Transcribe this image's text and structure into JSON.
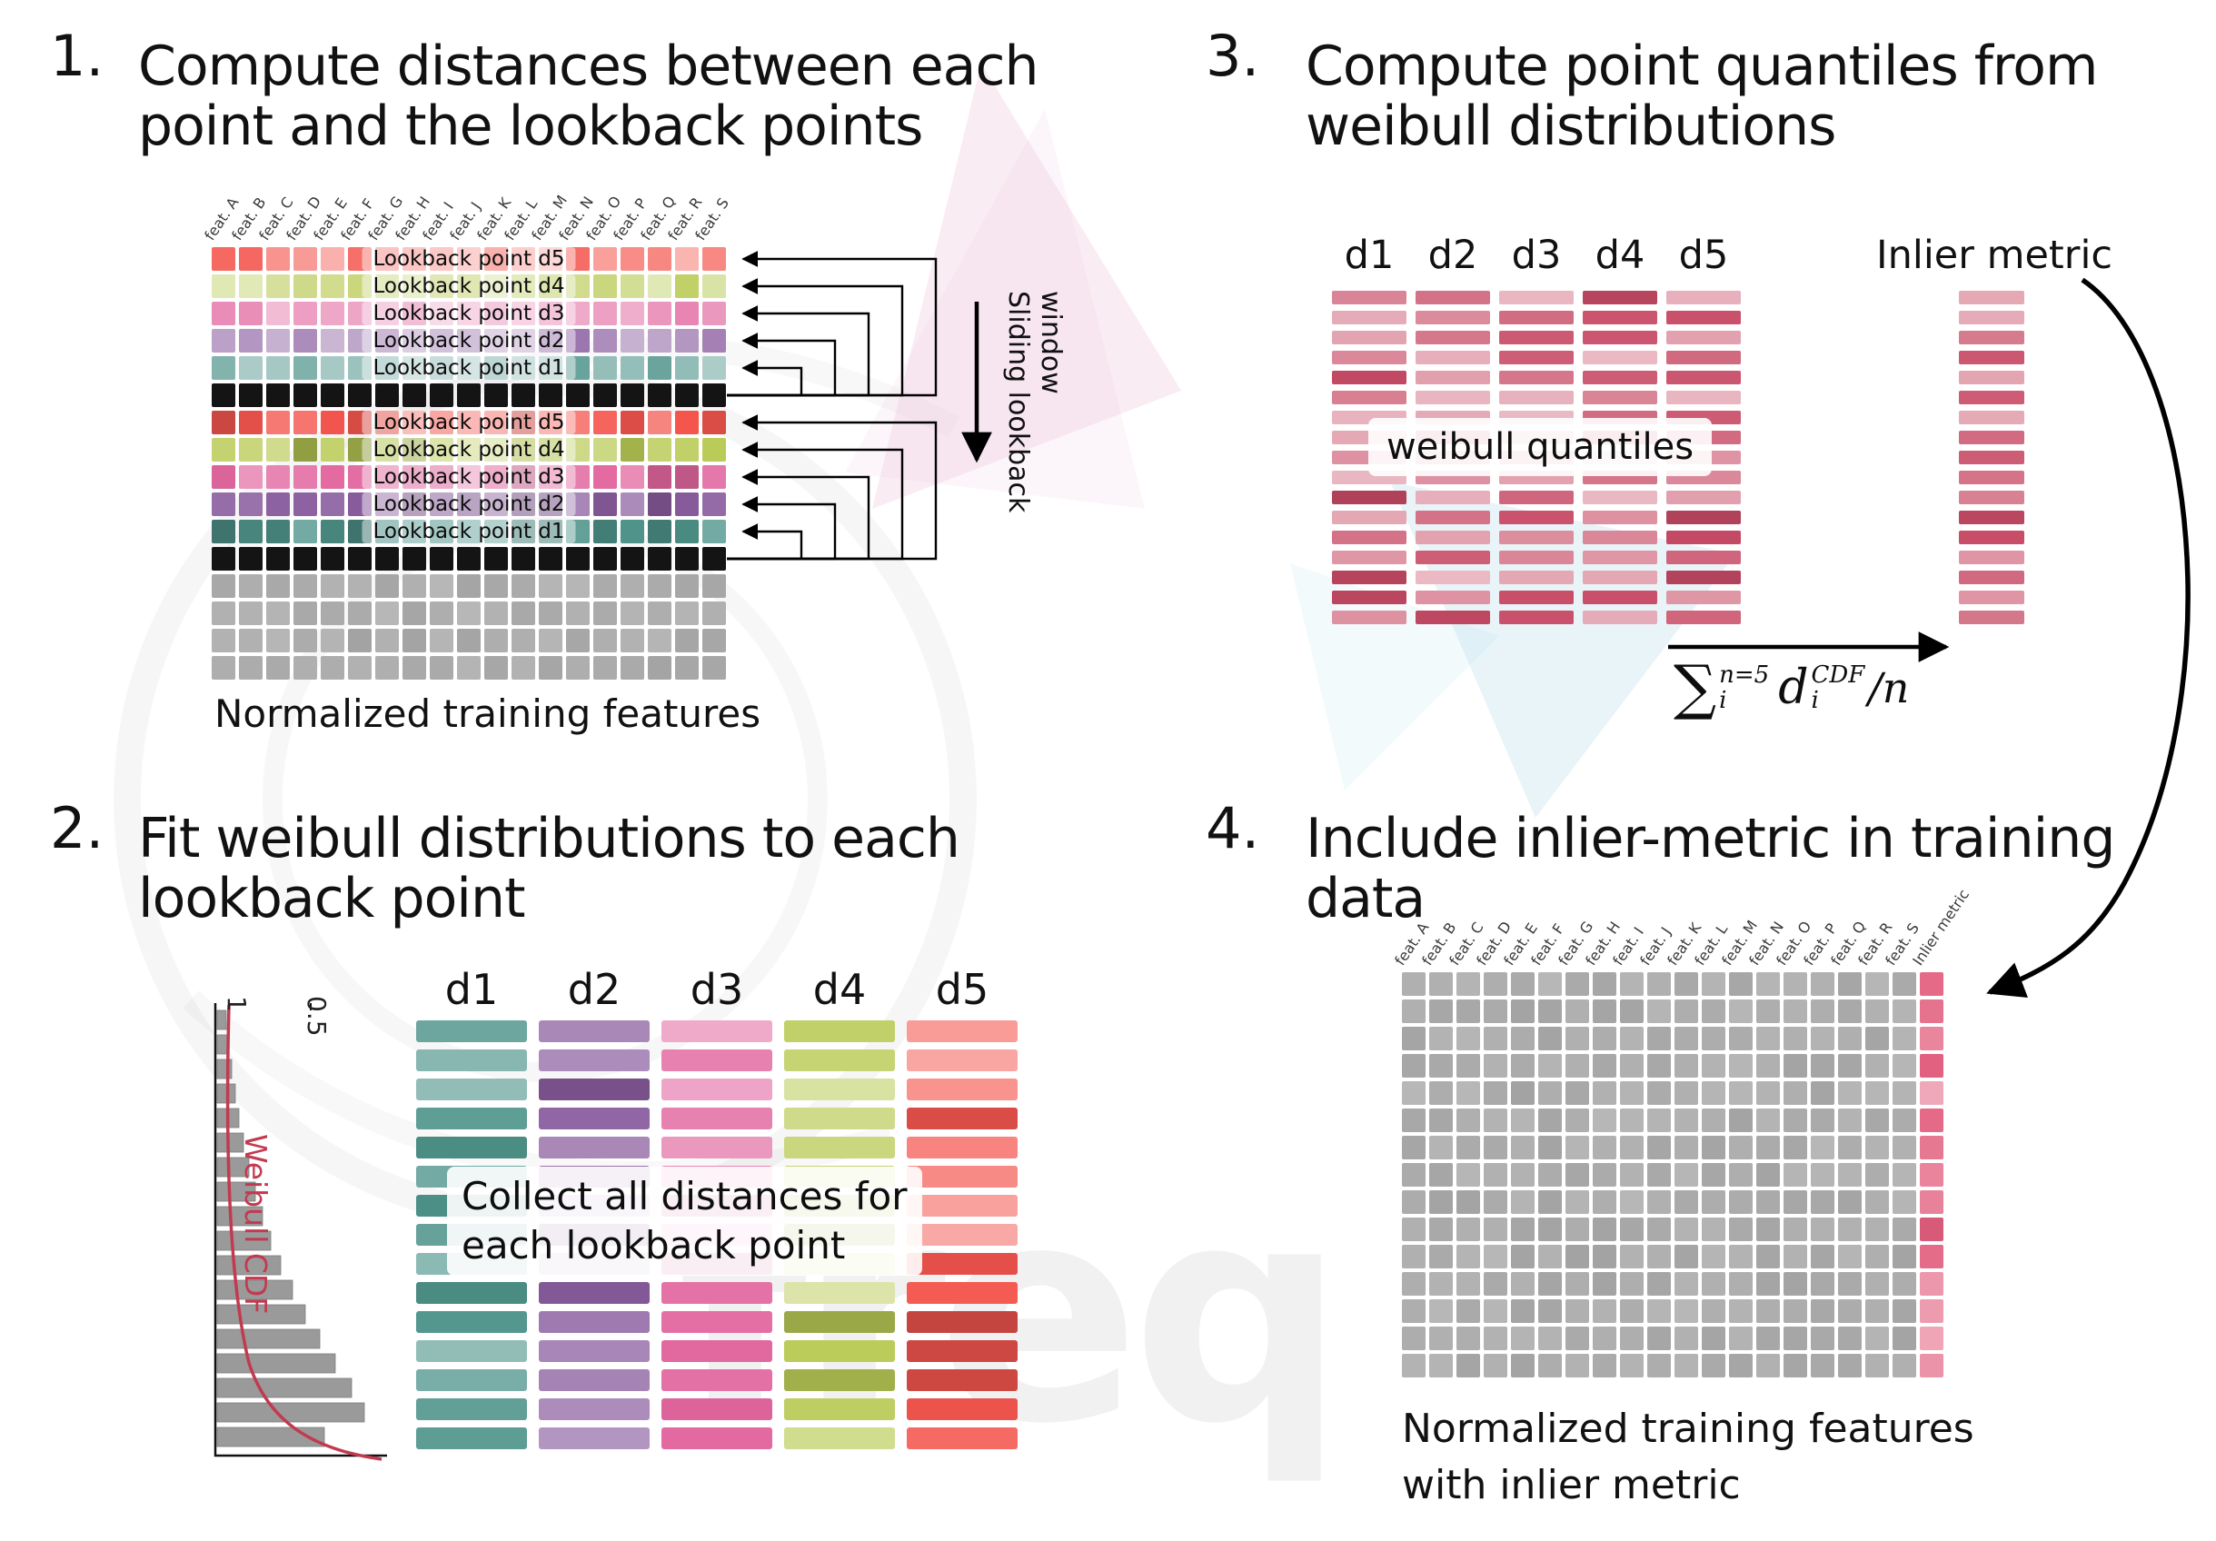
{
  "palette": {
    "d1": "#4f948b",
    "d2": "#8a5d9f",
    "d3": "#e2679f",
    "d4": "#b9ca55",
    "d5": "#f4564e",
    "black": "#141414",
    "gray": "#a3a3a3",
    "crimson": "#c84b66",
    "inlier": "#e2607f",
    "cdf_red": "#c23a50",
    "arrow": "#000000"
  },
  "watermark": {
    "text": "freq"
  },
  "step1": {
    "number": "1.",
    "title": [
      "Compute distances between each",
      "point and the lookback points"
    ],
    "features": [
      "feat. A",
      "feat. B",
      "feat. C",
      "feat. D",
      "feat. E",
      "feat. F",
      "feat. G",
      "feat. H",
      "feat. I",
      "feat. J",
      "feat. K",
      "feat. L",
      "feat. M",
      "feat. N",
      "feat. O",
      "feat. P",
      "feat. Q",
      "feat. R",
      "feat. S"
    ],
    "lookback_labels": [
      "Lookback point d5",
      "Lookback point d4",
      "Lookback point d3",
      "Lookback point d2",
      "Lookback point d1"
    ],
    "row_color_keys": [
      "d5",
      "d4",
      "d3",
      "d2",
      "d1"
    ],
    "groups": 2,
    "gray_rows": 4,
    "sliding_label": "Sliding lookback window",
    "caption": "Normalized training features"
  },
  "step2": {
    "number": "2.",
    "title": [
      "Fit weibull distributions to each",
      "lookback point"
    ],
    "columns": [
      "d1",
      "d2",
      "d3",
      "d4",
      "d5"
    ],
    "bars_per_column": 15,
    "overlay": [
      "Collect all distances for",
      "each lookback point"
    ],
    "chart": {
      "ylabel": "Weibull CDF",
      "ticks": [
        "1",
        "0.5"
      ],
      "bar_lengths": [
        10,
        13,
        16,
        20,
        24,
        29,
        35,
        42,
        50,
        59,
        70,
        83,
        97,
        113,
        130,
        148,
        162,
        118
      ]
    }
  },
  "step3": {
    "number": "3.",
    "title": [
      "Compute point quantiles from",
      "weibull distributions"
    ],
    "columns": [
      "d1",
      "d2",
      "d3",
      "d4",
      "d5"
    ],
    "bars_per_column": 17,
    "overlay": "weibull quantiles",
    "inlier_label": "Inlier metric",
    "formula": {
      "sigma": "∑",
      "sum_sup": "n=5",
      "sum_sub": "i",
      "var": "d",
      "var_sup": "CDF",
      "var_sub": "i",
      "tail": "/n"
    }
  },
  "step4": {
    "number": "4.",
    "title": [
      "Include inlier-metric in training",
      "data"
    ],
    "features": [
      "feat. A",
      "feat. B",
      "feat. C",
      "feat. D",
      "feat. E",
      "feat. F",
      "feat. G",
      "feat. H",
      "feat. I",
      "feat. J",
      "feat. K",
      "feat. L",
      "feat. M",
      "feat. N",
      "feat. O",
      "feat. P",
      "feat. Q",
      "feat. R",
      "feat. S",
      "Inlier metric"
    ],
    "rows": 15,
    "caption": [
      "Normalized training features",
      "with inlier metric"
    ]
  }
}
